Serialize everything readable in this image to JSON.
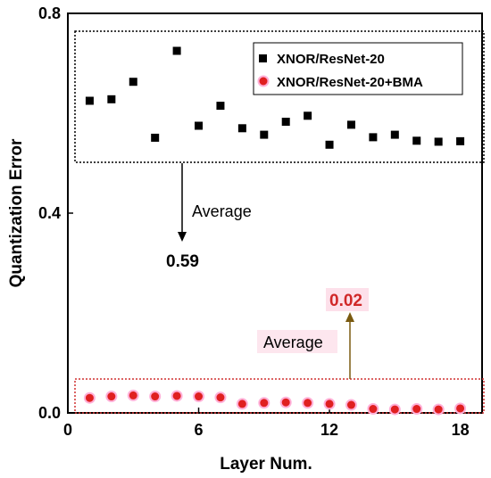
{
  "chart_data": {
    "type": "scatter",
    "xlabel": "Layer Num.",
    "ylabel": "Quantization Error",
    "xlim": [
      0,
      19
    ],
    "ylim": [
      0,
      0.8
    ],
    "xticks": [
      "0",
      "6",
      "12",
      "18"
    ],
    "yticks": [
      "0.0",
      "0.4",
      "0.8"
    ],
    "grid": false,
    "legend_position": "top-right",
    "series": [
      {
        "name": "XNOR/ResNet-20",
        "marker": "square",
        "color": "#000000",
        "x": [
          1,
          2,
          3,
          4,
          5,
          6,
          7,
          8,
          9,
          10,
          11,
          12,
          13,
          14,
          15,
          16,
          17,
          18
        ],
        "y": [
          0.625,
          0.628,
          0.663,
          0.551,
          0.725,
          0.575,
          0.615,
          0.57,
          0.557,
          0.583,
          0.595,
          0.537,
          0.577,
          0.552,
          0.557,
          0.545,
          0.543,
          0.544
        ]
      },
      {
        "name": "XNOR/ResNet-20+BMA",
        "marker": "circle",
        "color": "#e02020",
        "x": [
          1,
          2,
          3,
          4,
          5,
          6,
          7,
          8,
          9,
          10,
          11,
          12,
          13,
          14,
          15,
          16,
          17,
          18
        ],
        "y": [
          0.03,
          0.033,
          0.035,
          0.033,
          0.034,
          0.033,
          0.031,
          0.018,
          0.02,
          0.021,
          0.02,
          0.018,
          0.016,
          0.008,
          0.007,
          0.008,
          0.007,
          0.009
        ]
      }
    ],
    "annotations": [
      {
        "label": "Average",
        "value": "0.59",
        "color": "#000000"
      },
      {
        "label": "Average",
        "value": "0.02",
        "color": "#d02828"
      }
    ]
  }
}
